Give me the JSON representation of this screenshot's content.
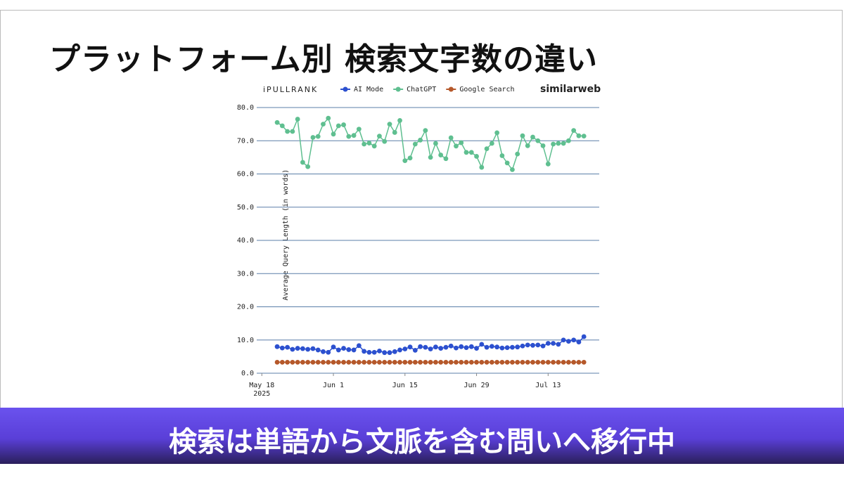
{
  "header": {
    "title": "プラットフォーム別 検索文字数の違い"
  },
  "footer": {
    "caption": "検索は単語から文脈を含む問いへ移行中"
  },
  "chart_data": {
    "type": "line",
    "logos": [
      "iPULLRANK",
      "similarweb"
    ],
    "y_label": "Average Query Length (in words)",
    "x": [
      "2025-05-21",
      "2025-05-22",
      "2025-05-23",
      "2025-05-24",
      "2025-05-25",
      "2025-05-26",
      "2025-05-27",
      "2025-05-28",
      "2025-05-29",
      "2025-05-30",
      "2025-05-31",
      "2025-06-01",
      "2025-06-02",
      "2025-06-03",
      "2025-06-04",
      "2025-06-05",
      "2025-06-06",
      "2025-06-07",
      "2025-06-08",
      "2025-06-09",
      "2025-06-10",
      "2025-06-11",
      "2025-06-12",
      "2025-06-13",
      "2025-06-14",
      "2025-06-15",
      "2025-06-16",
      "2025-06-17",
      "2025-06-18",
      "2025-06-19",
      "2025-06-20",
      "2025-06-21",
      "2025-06-22",
      "2025-06-23",
      "2025-06-24",
      "2025-06-25",
      "2025-06-26",
      "2025-06-27",
      "2025-06-28",
      "2025-06-29",
      "2025-06-30",
      "2025-07-01",
      "2025-07-02",
      "2025-07-03",
      "2025-07-04",
      "2025-07-05",
      "2025-07-06",
      "2025-07-07",
      "2025-07-08",
      "2025-07-09",
      "2025-07-10",
      "2025-07-11",
      "2025-07-12",
      "2025-07-13",
      "2025-07-14",
      "2025-07-15",
      "2025-07-16",
      "2025-07-17",
      "2025-07-18",
      "2025-07-19",
      "2025-07-20"
    ],
    "series": [
      {
        "name": "AI Mode",
        "color": "#2c50cf",
        "values": [
          8,
          7.6,
          7.8,
          7.2,
          7.5,
          7.4,
          7.2,
          7.4,
          7,
          6.5,
          6.3,
          7.9,
          7,
          7.5,
          7.1,
          7,
          8.3,
          6.6,
          6.3,
          6.3,
          6.7,
          6.2,
          6.2,
          6.5,
          7,
          7.3,
          7.9,
          6.9,
          8,
          7.8,
          7.3,
          7.9,
          7.5,
          7.8,
          8.2,
          7.6,
          8,
          7.7,
          8,
          7.5,
          8.7,
          7.8,
          8.1,
          7.9,
          7.6,
          7.7,
          7.8,
          7.9,
          8.2,
          8.5,
          8.4,
          8.5,
          8.2,
          9,
          9,
          8.7,
          10,
          9.6,
          10,
          9.4,
          11
        ]
      },
      {
        "name": "ChatGPT",
        "color": "#5fbf90",
        "values": [
          75.5,
          74.5,
          72.8,
          72.8,
          76.5,
          63.5,
          62.2,
          71,
          71.3,
          75,
          76.8,
          72,
          74.5,
          74.8,
          71.3,
          71.6,
          73.5,
          69,
          69.3,
          68.4,
          71.4,
          69.8,
          75,
          72.5,
          76.1,
          64,
          64.8,
          69,
          70.2,
          73.1,
          65,
          69.2,
          65.7,
          64.6,
          70.9,
          68.4,
          69.4,
          66.5,
          66.5,
          65.3,
          62,
          67.6,
          69.2,
          72.4,
          65.5,
          63.3,
          61.3,
          66,
          71.5,
          68.5,
          71.1,
          70,
          68.5,
          63,
          69,
          69.2,
          69.2,
          70,
          73.1,
          71.5,
          71.4
        ]
      },
      {
        "name": "Google Search",
        "color": "#b5582a",
        "values": [
          3.3,
          3.3,
          3.3,
          3.3,
          3.3,
          3.3,
          3.3,
          3.3,
          3.3,
          3.3,
          3.3,
          3.3,
          3.3,
          3.3,
          3.3,
          3.3,
          3.3,
          3.3,
          3.3,
          3.3,
          3.3,
          3.3,
          3.3,
          3.3,
          3.3,
          3.3,
          3.3,
          3.3,
          3.3,
          3.3,
          3.3,
          3.3,
          3.3,
          3.3,
          3.3,
          3.3,
          3.3,
          3.3,
          3.3,
          3.3,
          3.3,
          3.3,
          3.3,
          3.3,
          3.3,
          3.3,
          3.3,
          3.3,
          3.3,
          3.3,
          3.3,
          3.3,
          3.3,
          3.3,
          3.3,
          3.3,
          3.3,
          3.3,
          3.3,
          3.3,
          3.3
        ]
      }
    ],
    "xlim": [
      "2025-05-17",
      "2025-07-23"
    ],
    "xticks": [
      {
        "value": "2025-05-18",
        "label": "May 18",
        "sublabel": "2025"
      },
      {
        "value": "2025-06-01",
        "label": "Jun 1"
      },
      {
        "value": "2025-06-15",
        "label": "Jun 15"
      },
      {
        "value": "2025-06-29",
        "label": "Jun 29"
      },
      {
        "value": "2025-07-13",
        "label": "Jul 13"
      }
    ],
    "ylim": [
      0,
      80
    ],
    "yticks": [
      {
        "value": 0,
        "label": "0.0"
      },
      {
        "value": 10,
        "label": "10.0"
      },
      {
        "value": 20,
        "label": "20.0"
      },
      {
        "value": 30,
        "label": "30.0"
      },
      {
        "value": 40,
        "label": "40.0"
      },
      {
        "value": 50,
        "label": "50.0"
      },
      {
        "value": 60,
        "label": "60.0"
      },
      {
        "value": 70,
        "label": "70.0"
      },
      {
        "value": 80,
        "label": "80.0"
      }
    ],
    "grid": true
  }
}
